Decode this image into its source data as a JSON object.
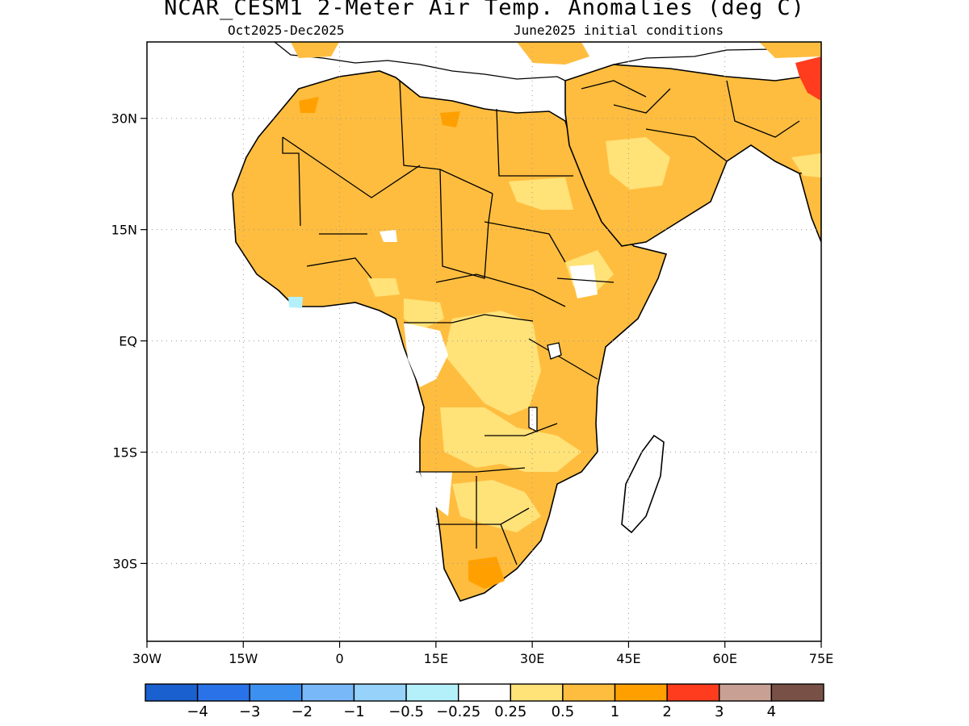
{
  "title": "NCAR_CESM1 2-Meter Air Temp. Anomalies (deg C)",
  "subtitle_left": "Oct2025-Dec2025",
  "subtitle_right": "June2025 initial conditions",
  "lat_ticks": [
    {
      "label": "30N",
      "lat": 30
    },
    {
      "label": "15N",
      "lat": 15
    },
    {
      "label": "EQ",
      "lat": 0
    },
    {
      "label": "15S",
      "lat": -15
    },
    {
      "label": "30S",
      "lat": -30
    }
  ],
  "lon_ticks": [
    {
      "label": "30W",
      "lon": -30
    },
    {
      "label": "15W",
      "lon": -15
    },
    {
      "label": "0",
      "lon": 0
    },
    {
      "label": "15E",
      "lon": 15
    },
    {
      "label": "30E",
      "lon": 30
    },
    {
      "label": "45E",
      "lon": 45
    },
    {
      "label": "60E",
      "lon": 60
    },
    {
      "label": "75E",
      "lon": 75
    }
  ],
  "map_extent": {
    "lon_min": -30,
    "lon_max": 75,
    "lat_min": -40.5,
    "lat_max": 40.3
  },
  "colorbar": {
    "colors": [
      "#1a60cf",
      "#2a72e8",
      "#3c90f0",
      "#78b8f8",
      "#96d2fa",
      "#b4f0fa",
      "#ffffff",
      "#ffe278",
      "#ffbd3f",
      "#ffa000",
      "#ff3c1e",
      "#c8a094",
      "#785046"
    ],
    "labels": [
      "-4",
      "-3",
      "-2",
      "-1",
      "-0.5",
      "-0.25",
      "0.25",
      "0.5",
      "1",
      "2",
      "3",
      "4"
    ]
  },
  "palette": {
    "land_dominant": "#ffbd3f",
    "land_weak": "#ffe278",
    "land_neutral": "#ffffff",
    "land_strong": "#ffa000",
    "land_hot": "#ff3c1e",
    "land_cool": "#b4f0fa"
  }
}
